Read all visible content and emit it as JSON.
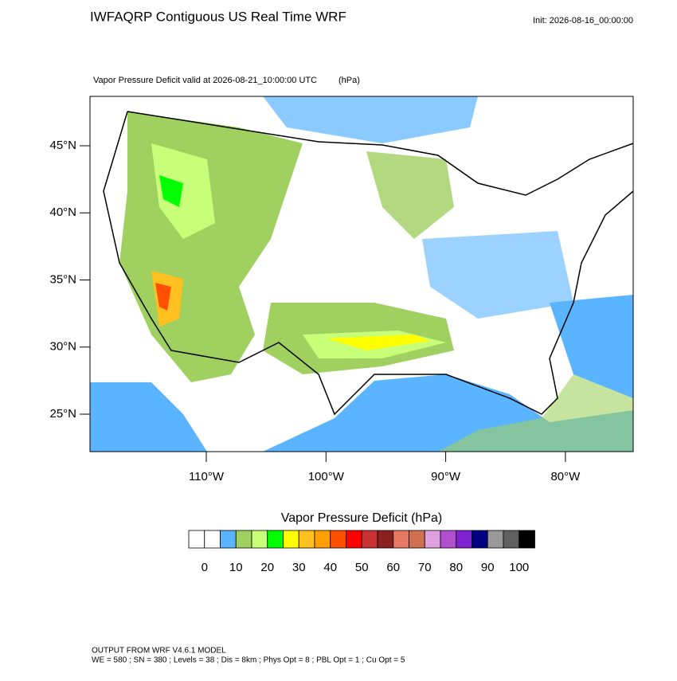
{
  "header": {
    "title": "IWFAQRP Contiguous US Real Time WRF",
    "init": "Init: 2026-08-16_00:00:00",
    "subtitle": "Vapor Pressure Deficit valid at 2026-08-21_10:00:00 UTC",
    "units": "(hPa)"
  },
  "map": {
    "lat_labels": [
      "45°N",
      "40°N",
      "35°N",
      "30°N",
      "25°N"
    ],
    "lon_labels": [
      "110°W",
      "100°W",
      "90°W",
      "80°W"
    ]
  },
  "colorbar": {
    "title": "Vapor Pressure Deficit  (hPa)",
    "colors": [
      "#ffffff",
      "#ffffff",
      "#5ab4ff",
      "#a0d060",
      "#c8ff78",
      "#00ff00",
      "#ffff00",
      "#ffc020",
      "#ffa000",
      "#ff5000",
      "#ff0000",
      "#c83232",
      "#8c2020",
      "#e87864",
      "#d07050",
      "#e0a0e0",
      "#b050d0",
      "#8020d0",
      "#000080",
      "#999999",
      "#606060",
      "#000000"
    ],
    "labels": [
      0,
      10,
      20,
      30,
      40,
      50,
      60,
      70,
      80,
      90,
      100
    ]
  },
  "footer": {
    "line1": "OUTPUT FROM WRF V4.6.1 MODEL",
    "line2": "WE = 580 ; SN = 380 ; Levels = 38 ; Dis = 8km ; Phys Opt = 8 ; PBL Opt = 1 ; Cu Opt = 5"
  }
}
